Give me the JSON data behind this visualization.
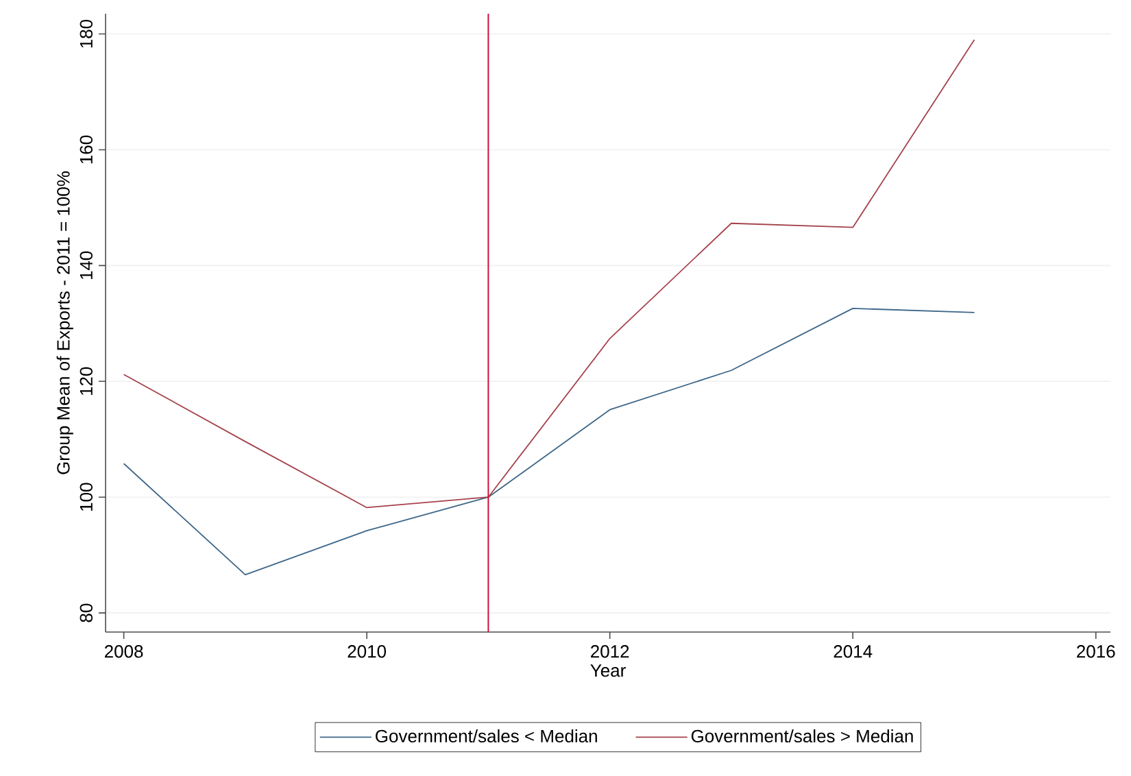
{
  "chart_data": {
    "type": "line",
    "xlabel": "Year",
    "ylabel": "Group Mean of Exports - 2011 = 100%",
    "x": [
      2008,
      2009,
      2010,
      2011,
      2012,
      2013,
      2014,
      2015
    ],
    "series": [
      {
        "name": "Government/sales < Median",
        "color": "#3d6689",
        "values": [
          105.8,
          86.6,
          94.2,
          100,
          115.1,
          121.9,
          132.6,
          131.9
        ]
      },
      {
        "name": "Government/sales > Median",
        "color": "#a5424c",
        "values": [
          121.2,
          109.6,
          98.2,
          100,
          127.4,
          147.3,
          146.6,
          179
        ]
      }
    ],
    "xlim": [
      2007.85,
      2016.12
    ],
    "ylim": [
      76.7,
      183.5
    ],
    "xticks": [
      2008,
      2010,
      2012,
      2014,
      2016
    ],
    "yticks": [
      80,
      100,
      120,
      140,
      160,
      180
    ],
    "ref_lines": [
      {
        "axis": "x",
        "value": 2011,
        "color": "#d0103a"
      }
    ],
    "grid": "y",
    "legend": "bottom",
    "line_style": "solid"
  }
}
